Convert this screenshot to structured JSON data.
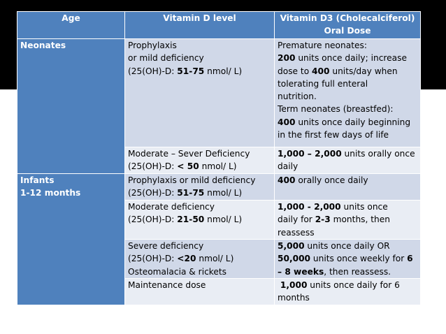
{
  "table": {
    "headers": [
      "Age",
      "Vitamin D level",
      "Vitamin D3 (Cholecalciferol) Oral Dose"
    ],
    "groups": {
      "neonates": "Neonates",
      "infants_1": "Infants",
      "infants_2": "1-12 months"
    },
    "rows": [
      {
        "level": [
          "Prophylaxis",
          "or mild deficiency",
          "(25(OH)-D: 51-75 nmol/ L)"
        ],
        "dose": [
          "Premature neonates:",
          "200 units once daily; increase",
          "dose to 400 units/day when",
          "tolerating full enteral",
          "nutrition.",
          "Term neonates (breastfed):",
          "400 units once daily beginning",
          "in the first few days of life"
        ]
      },
      {
        "level": [
          "Moderate – Sever Deficiency",
          "(25(OH)-D: < 50 nmol/ L)"
        ],
        "dose": [
          "1,000 – 2,000 units orally once",
          "daily"
        ]
      },
      {
        "level": [
          "Prophylaxis or mild deficiency",
          "(25(OH)-D: 51-75 nmol/ L)"
        ],
        "dose": [
          "400 orally once daily"
        ]
      },
      {
        "level": [
          "Moderate deficiency",
          "(25(OH)-D: 21-50 nmol/ L)"
        ],
        "dose": [
          "1,000 - 2,000 units once",
          "daily for 2-3 months, then",
          "reassess"
        ]
      },
      {
        "level": [
          "Severe deficiency",
          "(25(OH)-D: <20 nmol/ L)",
          "Osteomalacia & rickets"
        ],
        "dose": [
          "5,000 units once daily OR",
          "50,000 units once weekly for 6",
          "– 8 weeks, then reassess."
        ]
      },
      {
        "level": [
          "Maintenance dose"
        ],
        "dose": [
          " 1,000 units once daily for 6",
          "months"
        ]
      }
    ]
  },
  "colors": {
    "header_bg": "#4f81bd",
    "row_odd_bg": "#d0d8e8",
    "row_even_bg": "#e9edf4",
    "top_band": "#000000"
  }
}
